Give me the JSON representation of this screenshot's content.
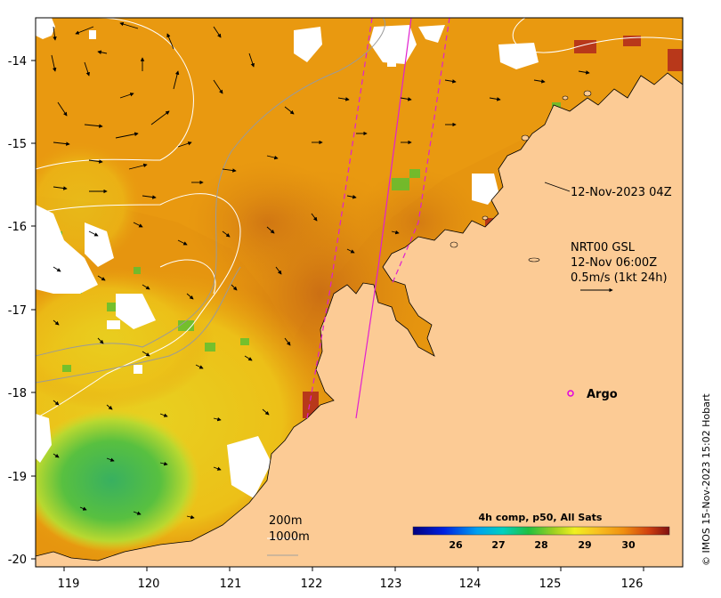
{
  "map": {
    "x_ticks": [
      "119",
      "120",
      "121",
      "122",
      "123",
      "124",
      "125",
      "126"
    ],
    "y_ticks": [
      "-14",
      "-15",
      "-16",
      "-17",
      "-18",
      "-19",
      "-20"
    ],
    "overpass_label": "12-Nov-2023 04Z",
    "current_model": "NRT00 GSL",
    "current_time": "12-Nov 06:00Z",
    "current_scale": "0.5m/s (1kt 24h)",
    "argo_label": "Argo",
    "contour_200": "200m",
    "contour_1000": "1000m",
    "colorbar_title": "4h comp, p50, All Sats",
    "colorbar_ticks": [
      "26",
      "27",
      "28",
      "29",
      "30"
    ],
    "credit": "© IMOS 15-Nov-2023 15:02 Hobart",
    "colors": {
      "land": "#fccb95",
      "sst_warm": "#e8940c",
      "sst_hot": "#b8381a",
      "sst_cool": "#d8d81e",
      "sst_green": "#3cb44a",
      "track": "#e020d0",
      "argo": "#e000e0"
    }
  }
}
